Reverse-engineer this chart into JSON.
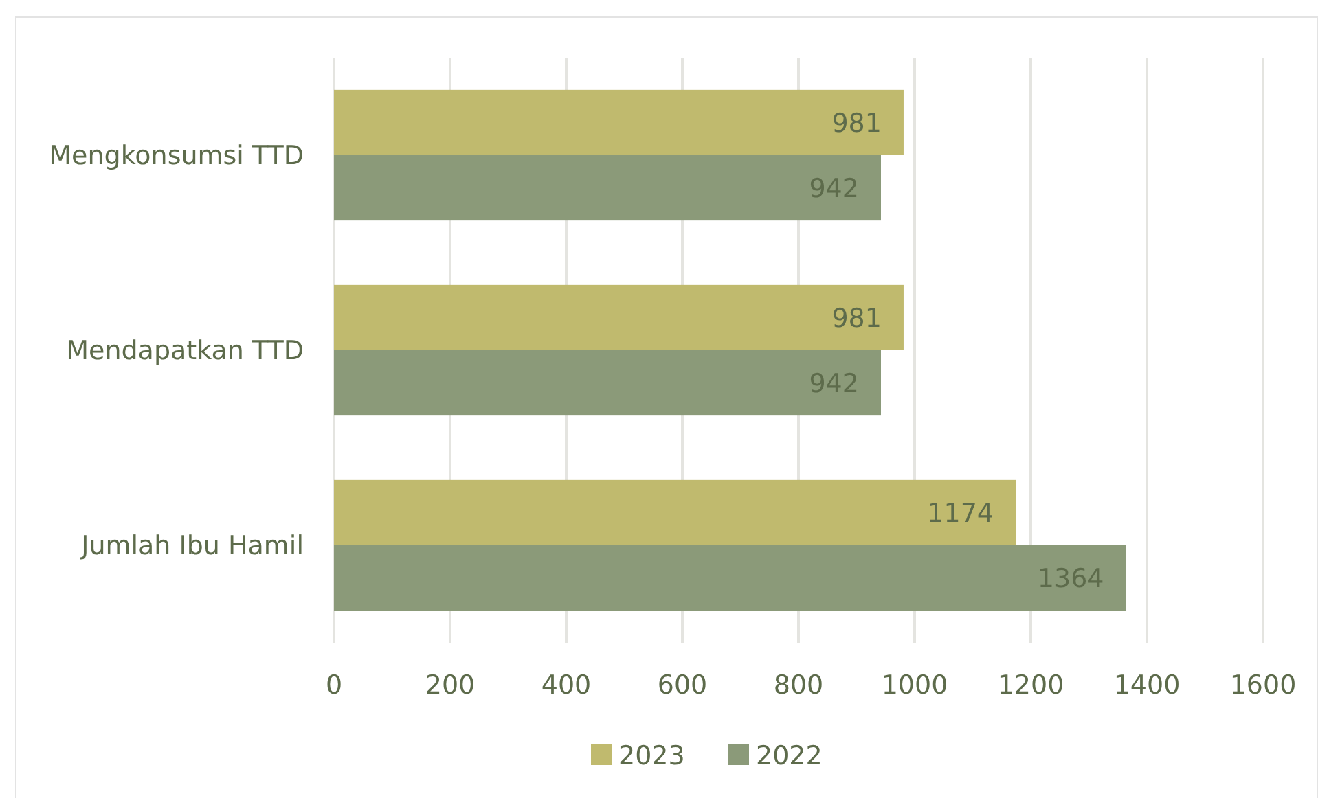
{
  "chart_data": {
    "type": "bar",
    "orientation": "horizontal",
    "categories": [
      "Mengkonsumsi TTD",
      "Mendapatkan TTD",
      "Jumlah Ibu Hamil"
    ],
    "series": [
      {
        "name": "2023",
        "color": "#c0ba6e",
        "values": [
          981,
          981,
          1174
        ]
      },
      {
        "name": "2022",
        "color": "#8b9a79",
        "values": [
          942,
          942,
          1364
        ]
      }
    ],
    "xlim": [
      0,
      1600
    ],
    "xticks": [
      0,
      200,
      400,
      600,
      800,
      1000,
      1200,
      1400,
      1600
    ],
    "grid": "x",
    "legend": "bottom",
    "data_labels": true
  }
}
